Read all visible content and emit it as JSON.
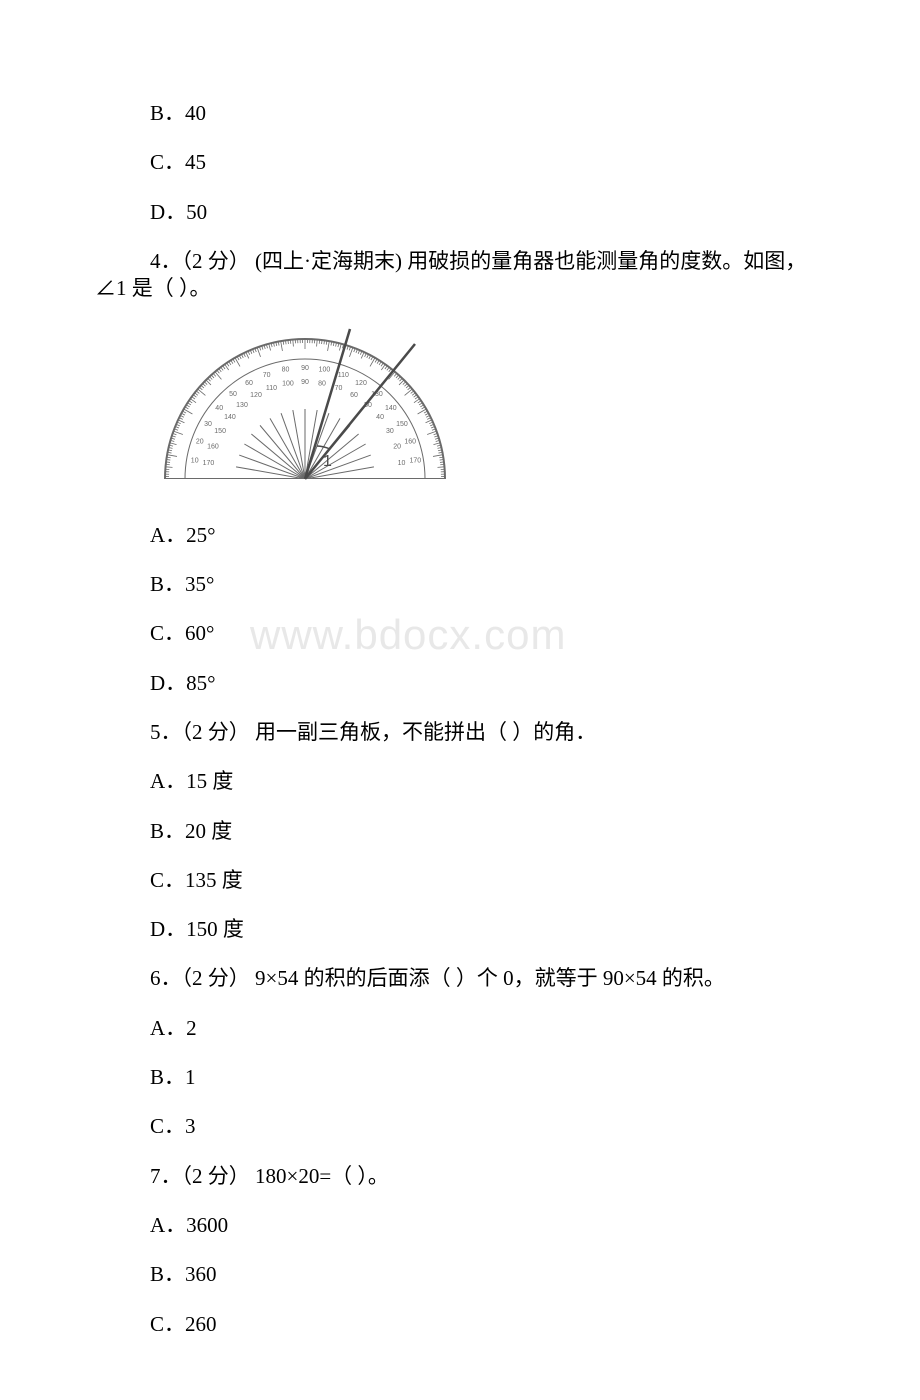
{
  "watermark": "www.bdocx.com",
  "q3_options": {
    "b": "B．40",
    "c": "C．45",
    "d": "D．50"
  },
  "q4": {
    "text": "4．（2 分） (四上·定海期末) 用破损的量角器也能测量角的度数。如图，∠1 是（ ）。",
    "a": "A．25°",
    "b": "B．35°",
    "c": "C．60°",
    "d": "D．85°"
  },
  "q5": {
    "text": "5．（2 分） 用一副三角板，不能拼出（ ）的角．",
    "a": "A．15 度",
    "b": "B．20 度",
    "c": "C．135 度",
    "d": "D．150 度"
  },
  "q6": {
    "text": "6．（2 分） 9×54 的积的后面添（ ）个 0，就等于 90×54 的积。",
    "a": "A．2",
    "b": "B．1",
    "c": "C．3"
  },
  "q7": {
    "text": "7．（2 分） 180×20=（ ）。",
    "a": "A．3600",
    "b": "B．360",
    "c": "C．260"
  },
  "protractor": {
    "outer_numbers": [
      "10",
      "20",
      "30",
      "40",
      "50",
      "60",
      "70",
      "80",
      "90",
      "100",
      "110",
      "120",
      "130",
      "140",
      "150",
      "160",
      "170"
    ],
    "inner_numbers": [
      "170",
      "160",
      "150",
      "140",
      "130",
      "120",
      "110",
      "100",
      "90",
      "80",
      "70",
      "60",
      "50",
      "40",
      "30",
      "20",
      "10"
    ],
    "angle_label": "1",
    "stroke_color": "#6a6a6a",
    "fill_color": "#ffffff"
  }
}
